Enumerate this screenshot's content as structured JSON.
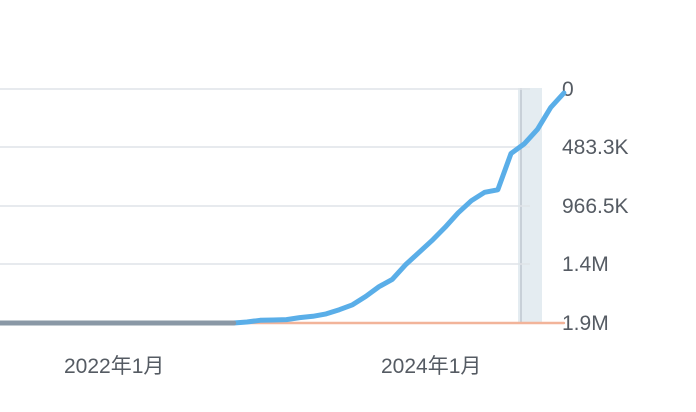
{
  "chart_data": {
    "type": "line",
    "title": "",
    "xlabel": "",
    "ylabel": "",
    "x_tick_labels": [
      {
        "date": "2022-01",
        "label": "2022年1月"
      },
      {
        "date": "2024-01",
        "label": "2024年1月"
      }
    ],
    "y_ticks": [
      {
        "value": 0,
        "label": "0"
      },
      {
        "value": 483300,
        "label": "483.3K"
      },
      {
        "value": 966500,
        "label": "966.5K"
      },
      {
        "value": 1400000,
        "label": "1.4M"
      },
      {
        "value": 1900000,
        "label": "1.9M"
      }
    ],
    "ylim": [
      0,
      1933000
    ],
    "y_axis_position": "right",
    "grid": true,
    "colors": {
      "series_main": "#5aaee8",
      "series_overlap": "#8a98a6",
      "series_baseline": "#f2b49a",
      "grid": "#dfe3e8",
      "highlight_band": "#e4ecf1",
      "cursor_line": "#bfc7cf"
    },
    "series": [
      {
        "values": [
          [
            "2020-11",
            0
          ],
          [
            "2021-06",
            0
          ],
          [
            "2022-01",
            0
          ],
          [
            "2022-06",
            0
          ],
          [
            "2022-09",
            0
          ],
          [
            "2022-10",
            8000
          ],
          [
            "2022-11",
            22000
          ],
          [
            "2022-12",
            25000
          ],
          [
            "2023-01",
            28000
          ],
          [
            "2023-02",
            45000
          ],
          [
            "2023-03",
            55000
          ],
          [
            "2023-04",
            75000
          ],
          [
            "2023-05",
            110000
          ],
          [
            "2023-06",
            150000
          ],
          [
            "2023-07",
            220000
          ],
          [
            "2023-08",
            300000
          ],
          [
            "2023-09",
            360000
          ],
          [
            "2023-10",
            480000
          ],
          [
            "2023-11",
            580000
          ],
          [
            "2023-12",
            680000
          ],
          [
            "2024-01",
            790000
          ],
          [
            "2024-02",
            910000
          ],
          [
            "2024-03",
            1010000
          ],
          [
            "2024-04",
            1080000
          ],
          [
            "2024-05",
            1100000
          ],
          [
            "2024-06",
            1400000
          ],
          [
            "2024-07",
            1480000
          ],
          [
            "2024-08",
            1600000
          ],
          [
            "2024-09",
            1780000
          ],
          [
            "2024-10",
            1900000
          ]
        ]
      },
      {
        "values": [
          [
            "2020-11",
            0
          ],
          [
            "2021-06",
            0
          ],
          [
            "2022-01",
            0
          ],
          [
            "2022-06",
            0
          ],
          [
            "2023-01",
            0
          ],
          [
            "2023-06",
            0
          ],
          [
            "2024-01",
            0
          ],
          [
            "2024-06",
            0
          ],
          [
            "2024-10",
            0
          ]
        ]
      }
    ]
  }
}
